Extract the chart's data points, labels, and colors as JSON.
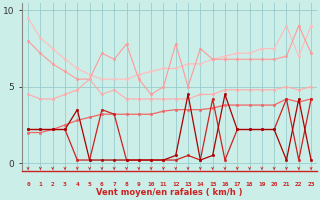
{
  "background_color": "#cceee8",
  "grid_color": "#99cccc",
  "xlabel": "Vent moyen/en rafales ( km/h )",
  "ylim": [
    -0.5,
    10.5
  ],
  "xlim": [
    -0.5,
    23.5
  ],
  "x": [
    0,
    1,
    2,
    3,
    4,
    5,
    6,
    7,
    8,
    9,
    10,
    11,
    12,
    13,
    14,
    15,
    16,
    17,
    18,
    19,
    20,
    21,
    22,
    23
  ],
  "series": [
    {
      "y": [
        9.5,
        8.2,
        7.5,
        6.8,
        6.2,
        5.8,
        5.5,
        5.5,
        5.5,
        5.8,
        6.0,
        6.2,
        6.2,
        6.5,
        6.5,
        6.8,
        7.0,
        7.2,
        7.2,
        7.5,
        7.5,
        9.0,
        7.0,
        9.0
      ],
      "color": "#ffbbbb",
      "lw": 0.8,
      "marker": "o",
      "ms": 1.8
    },
    {
      "y": [
        8.0,
        7.2,
        6.5,
        6.0,
        5.5,
        5.5,
        7.2,
        6.8,
        7.8,
        5.5,
        4.5,
        5.0,
        7.8,
        5.0,
        7.5,
        6.8,
        6.8,
        6.8,
        6.8,
        6.8,
        6.8,
        7.0,
        9.0,
        7.2
      ],
      "color": "#ff9999",
      "lw": 0.8,
      "marker": "o",
      "ms": 1.8
    },
    {
      "y": [
        4.5,
        4.2,
        4.2,
        4.5,
        4.8,
        5.5,
        4.5,
        4.8,
        4.2,
        4.2,
        4.2,
        4.2,
        4.2,
        4.2,
        4.5,
        4.5,
        4.8,
        4.8,
        4.8,
        4.8,
        4.8,
        5.0,
        4.8,
        5.0
      ],
      "color": "#ffaaaa",
      "lw": 0.8,
      "marker": "o",
      "ms": 1.8
    },
    {
      "y": [
        2.0,
        2.0,
        2.2,
        2.5,
        2.8,
        3.0,
        3.2,
        3.2,
        3.2,
        3.2,
        3.2,
        3.4,
        3.5,
        3.5,
        3.5,
        3.6,
        3.8,
        3.8,
        3.8,
        3.8,
        3.8,
        4.2,
        4.0,
        4.2
      ],
      "color": "#ee6666",
      "lw": 0.9,
      "marker": "o",
      "ms": 1.8
    },
    {
      "y": [
        2.2,
        2.2,
        2.2,
        2.2,
        0.2,
        0.2,
        3.5,
        3.2,
        0.2,
        0.2,
        0.2,
        0.2,
        0.2,
        0.5,
        0.2,
        4.2,
        0.2,
        2.2,
        2.2,
        2.2,
        2.2,
        4.2,
        0.2,
        4.2
      ],
      "color": "#cc2222",
      "lw": 0.9,
      "marker": "o",
      "ms": 1.8
    },
    {
      "y": [
        2.2,
        2.2,
        2.2,
        2.2,
        3.5,
        0.2,
        0.2,
        0.2,
        0.2,
        0.2,
        0.2,
        0.2,
        0.5,
        4.5,
        0.2,
        0.5,
        4.5,
        2.2,
        2.2,
        2.2,
        2.2,
        0.2,
        4.2,
        0.2
      ],
      "color": "#aa0000",
      "lw": 0.9,
      "marker": "o",
      "ms": 1.8
    }
  ],
  "yticks": [
    0,
    5,
    10
  ],
  "xtick_labels": [
    "0",
    "1",
    "2",
    "3",
    "4",
    "5",
    "6",
    "7",
    "8",
    "9",
    "10",
    "11",
    "12",
    "13",
    "14",
    "15",
    "16",
    "17",
    "18",
    "19",
    "20",
    "21",
    "22",
    "23"
  ],
  "arrow_color": "#cc2222",
  "spine_color": "#cc2222",
  "left_spine_color": "#888888"
}
